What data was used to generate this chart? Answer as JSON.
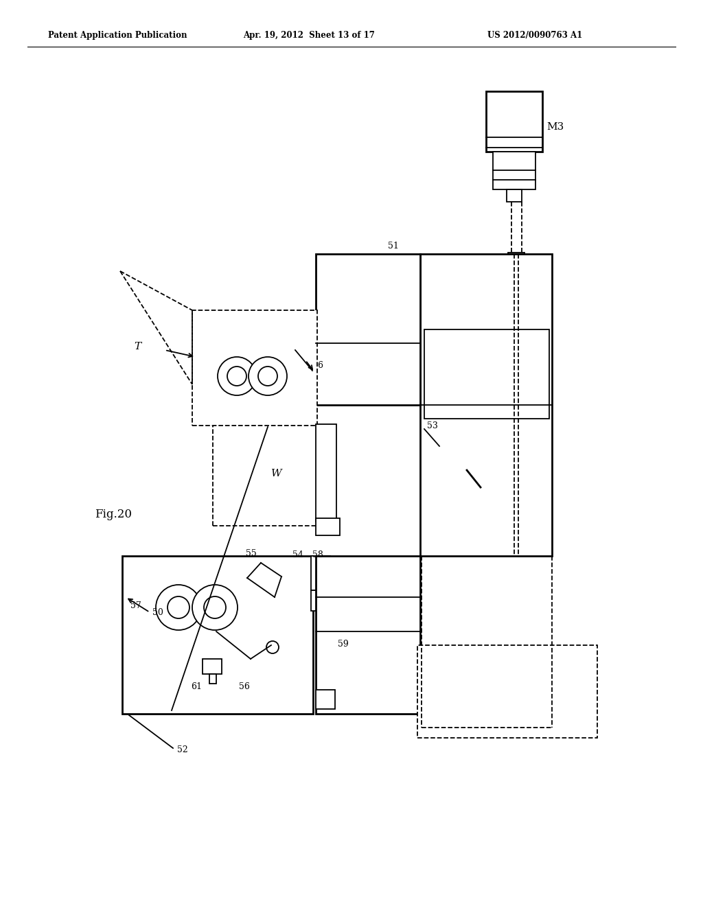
{
  "header_left": "Patent Application Publication",
  "header_mid": "Apr. 19, 2012  Sheet 13 of 17",
  "header_right": "US 2012/0090763 A1",
  "bg": "#ffffff",
  "lc": "#000000",
  "fig_label": "Fig.20"
}
